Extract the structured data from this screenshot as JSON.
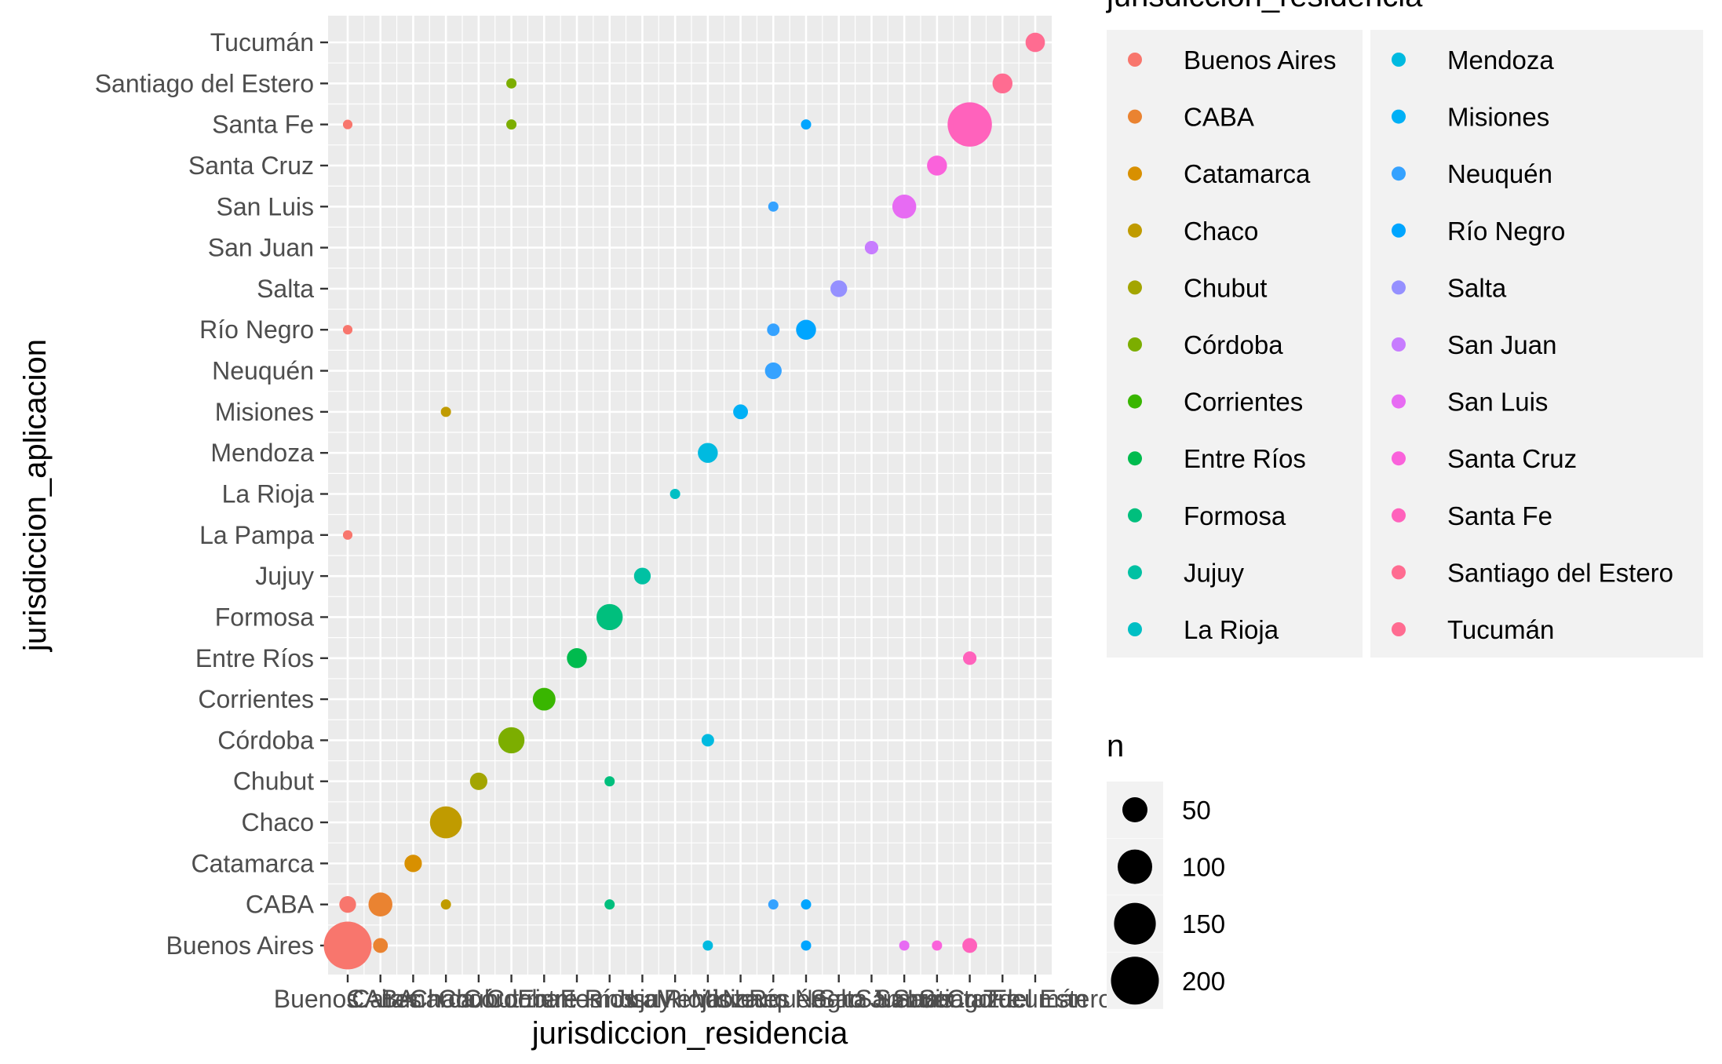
{
  "chart_data": {
    "type": "scatter",
    "xlabel": "jurisdiccion_residencia",
    "ylabel": "jurisdiccion_aplicacion",
    "categories": [
      "Buenos Aires",
      "CABA",
      "Catamarca",
      "Chaco",
      "Chubut",
      "Córdoba",
      "Corrientes",
      "Entre Ríos",
      "Formosa",
      "Jujuy",
      "La Pampa",
      "La Rioja",
      "Mendoza",
      "Misiones",
      "Neuquén",
      "Río Negro",
      "Salta",
      "San Juan",
      "San Luis",
      "Santa Cruz",
      "Santa Fe",
      "Santiago del Estero",
      "Tucumán"
    ],
    "x_categories": [
      "Buenos Aires",
      "CABA",
      "Catamarca",
      "Chaco",
      "Chubut",
      "Córdoba",
      "Corrientes",
      "Entre Ríos",
      "Formosa",
      "Jujuy",
      "La Rioja",
      "Mendoza",
      "Misiones",
      "Neuquén",
      "Río Negro",
      "Salta",
      "San Juan",
      "San Luis",
      "Santa Cruz",
      "Santa Fe",
      "Santiago del Estero",
      "Tucumán"
    ],
    "y_categories": [
      "Buenos Aires",
      "CABA",
      "Catamarca",
      "Chaco",
      "Chubut",
      "Córdoba",
      "Corrientes",
      "Entre Ríos",
      "Formosa",
      "Jujuy",
      "La Pampa",
      "La Rioja",
      "Mendoza",
      "Misiones",
      "Neuquén",
      "Río Negro",
      "Salta",
      "San Juan",
      "San Luis",
      "Santa Cruz",
      "Santa Fe",
      "Santiago del Estero",
      "Tucumán"
    ],
    "colors": {
      "Buenos Aires": "#F8766D",
      "CABA": "#EA8331",
      "Catamarca": "#D89000",
      "Chaco": "#C09B00",
      "Chubut": "#A3A500",
      "Córdoba": "#7CAE00",
      "Corrientes": "#39B600",
      "Entre Ríos": "#00BB4E",
      "Formosa": "#00BF7D",
      "Jujuy": "#00C1A3",
      "La Rioja": "#00BFC4",
      "Mendoza": "#00BAE0",
      "Misiones": "#00B0F6",
      "Neuquén": "#35A2FF",
      "Río Negro": "#00A5FF",
      "Salta": "#9590FF",
      "San Juan": "#C77CFF",
      "San Luis": "#E76BF3",
      "Santa Cruz": "#FA62DB",
      "Santa Fe": "#FF62BC",
      "Santiago del Estero": "#FF6C91",
      "Tucumán": "#FF6C91"
    },
    "points": [
      {
        "x": "Buenos Aires",
        "y": "Buenos Aires",
        "n": 200
      },
      {
        "x": "Buenos Aires",
        "y": "CABA",
        "n": 20
      },
      {
        "x": "Buenos Aires",
        "y": "La Pampa",
        "n": 5
      },
      {
        "x": "Buenos Aires",
        "y": "Río Negro",
        "n": 5
      },
      {
        "x": "Buenos Aires",
        "y": "Santa Fe",
        "n": 5
      },
      {
        "x": "CABA",
        "y": "Buenos Aires",
        "n": 15
      },
      {
        "x": "CABA",
        "y": "CABA",
        "n": 45
      },
      {
        "x": "Catamarca",
        "y": "Catamarca",
        "n": 22
      },
      {
        "x": "Chaco",
        "y": "CABA",
        "n": 6
      },
      {
        "x": "Chaco",
        "y": "Chaco",
        "n": 85
      },
      {
        "x": "Chaco",
        "y": "Misiones",
        "n": 6
      },
      {
        "x": "Chubut",
        "y": "Chubut",
        "n": 22
      },
      {
        "x": "Córdoba",
        "y": "Córdoba",
        "n": 55
      },
      {
        "x": "Córdoba",
        "y": "Santa Fe",
        "n": 6
      },
      {
        "x": "Córdoba",
        "y": "Santiago del Estero",
        "n": 6
      },
      {
        "x": "Corrientes",
        "y": "Corrientes",
        "n": 40
      },
      {
        "x": "Entre Ríos",
        "y": "Entre Ríos",
        "n": 30
      },
      {
        "x": "Formosa",
        "y": "CABA",
        "n": 6
      },
      {
        "x": "Formosa",
        "y": "Chubut",
        "n": 6
      },
      {
        "x": "Formosa",
        "y": "Formosa",
        "n": 55
      },
      {
        "x": "Jujuy",
        "y": "Jujuy",
        "n": 20
      },
      {
        "x": "La Rioja",
        "y": "La Rioja",
        "n": 6
      },
      {
        "x": "Mendoza",
        "y": "Buenos Aires",
        "n": 6
      },
      {
        "x": "Mendoza",
        "y": "Córdoba",
        "n": 10
      },
      {
        "x": "Mendoza",
        "y": "Mendoza",
        "n": 30
      },
      {
        "x": "Misiones",
        "y": "Misiones",
        "n": 15
      },
      {
        "x": "Neuquén",
        "y": "CABA",
        "n": 6
      },
      {
        "x": "Neuquén",
        "y": "Neuquén",
        "n": 20
      },
      {
        "x": "Neuquén",
        "y": "Río Negro",
        "n": 10
      },
      {
        "x": "Neuquén",
        "y": "San Luis",
        "n": 6
      },
      {
        "x": "Río Negro",
        "y": "Buenos Aires",
        "n": 6
      },
      {
        "x": "Río Negro",
        "y": "CABA",
        "n": 6
      },
      {
        "x": "Río Negro",
        "y": "Río Negro",
        "n": 30
      },
      {
        "x": "Río Negro",
        "y": "Santa Fe",
        "n": 6
      },
      {
        "x": "Salta",
        "y": "Salta",
        "n": 20
      },
      {
        "x": "San Juan",
        "y": "San Juan",
        "n": 12
      },
      {
        "x": "San Luis",
        "y": "Buenos Aires",
        "n": 6
      },
      {
        "x": "San Luis",
        "y": "San Luis",
        "n": 45
      },
      {
        "x": "Santa Cruz",
        "y": "Buenos Aires",
        "n": 6
      },
      {
        "x": "Santa Cruz",
        "y": "Santa Cruz",
        "n": 30
      },
      {
        "x": "Santa Fe",
        "y": "Buenos Aires",
        "n": 15
      },
      {
        "x": "Santa Fe",
        "y": "Entre Ríos",
        "n": 12
      },
      {
        "x": "Santa Fe",
        "y": "Santa Fe",
        "n": 170
      },
      {
        "x": "Santiago del Estero",
        "y": "Santiago del Estero",
        "n": 30
      },
      {
        "x": "Tucumán",
        "y": "Tucumán",
        "n": 28
      }
    ],
    "size_legend": {
      "title": "n",
      "breaks": [
        50,
        100,
        150,
        200
      ]
    },
    "color_legend": {
      "title": "jurisdiccion_residencia",
      "columns": [
        [
          "Buenos Aires",
          "CABA",
          "Catamarca",
          "Chaco",
          "Chubut",
          "Córdoba",
          "Corrientes",
          "Entre Ríos",
          "Formosa",
          "Jujuy",
          "La Rioja"
        ],
        [
          "Mendoza",
          "Misiones",
          "Neuquén",
          "Río Negro",
          "Salta",
          "San Juan",
          "San Luis",
          "Santa Cruz",
          "Santa Fe",
          "Santiago del Estero",
          "Tucumán"
        ]
      ]
    },
    "grid": true,
    "legend_position": "right"
  }
}
